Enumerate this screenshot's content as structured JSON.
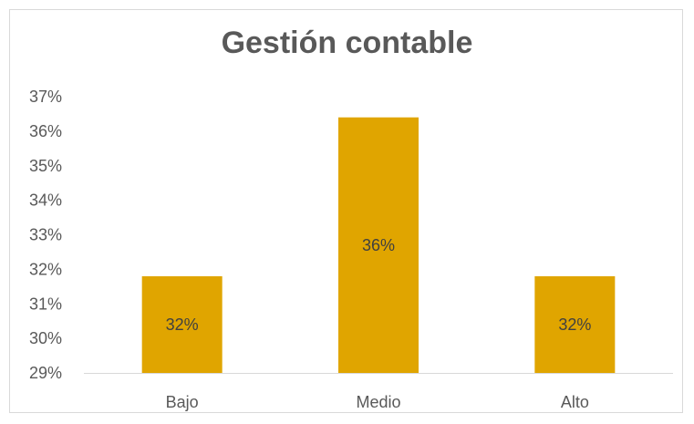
{
  "chart_data": {
    "type": "bar",
    "title": "Gestión contable",
    "categories": [
      "Bajo",
      "Medio",
      "Alto"
    ],
    "values": [
      31.8,
      36.4,
      31.8
    ],
    "data_labels": [
      "32%",
      "36%",
      "32%"
    ],
    "yticks": [
      "29%",
      "30%",
      "31%",
      "32%",
      "33%",
      "34%",
      "35%",
      "36%",
      "37%"
    ],
    "ylim": [
      29,
      37
    ],
    "xlabel": "",
    "ylabel": "",
    "grid": false,
    "legend": "none",
    "bar_color": "#e0a500",
    "axis_color": "#d9d9d9",
    "text_color": "#595959"
  }
}
